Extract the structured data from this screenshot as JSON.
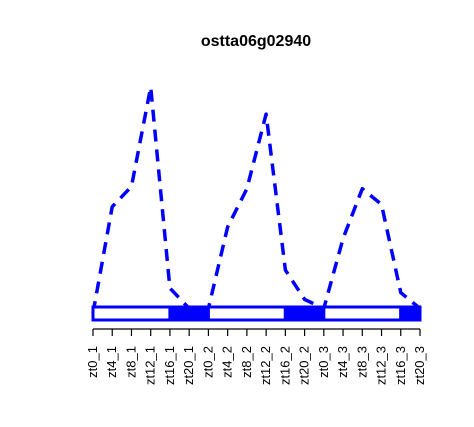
{
  "chart_data": {
    "type": "line",
    "title": "ostta06g02940",
    "xlabel": "",
    "ylabel": "",
    "categories": [
      "zt0_1",
      "zt4_1",
      "zt8_1",
      "zt12_1",
      "zt16_1",
      "zt20_1",
      "zt0_2",
      "zt4_2",
      "zt8_2",
      "zt12_2",
      "zt16_2",
      "zt20_2",
      "zt0_3",
      "zt4_3",
      "zt8_3",
      "zt12_3",
      "zt16_3",
      "zt20_3"
    ],
    "series": [
      {
        "values": [
          0.0,
          0.47,
          0.56,
          1.0,
          0.11,
          0.02,
          0.02,
          0.38,
          0.55,
          0.88,
          0.19,
          0.06,
          0.02,
          0.33,
          0.55,
          0.48,
          0.09,
          0.02
        ],
        "color": "#0000ff",
        "style": "dashed"
      }
    ],
    "ylim": [
      0,
      1
    ],
    "grid": false,
    "light_dark_bar": {
      "segments": [
        {
          "state": "light",
          "from": "zt0_1",
          "to": "zt16_1"
        },
        {
          "state": "dark",
          "from": "zt16_1",
          "to": "zt0_2"
        },
        {
          "state": "light",
          "from": "zt0_2",
          "to": "zt16_2"
        },
        {
          "state": "dark",
          "from": "zt16_2",
          "to": "zt0_3"
        },
        {
          "state": "light",
          "from": "zt0_3",
          "to": "zt16_3"
        },
        {
          "state": "dark",
          "from": "zt16_3",
          "to": "zt20_3"
        }
      ],
      "color": "#0000ff"
    }
  }
}
